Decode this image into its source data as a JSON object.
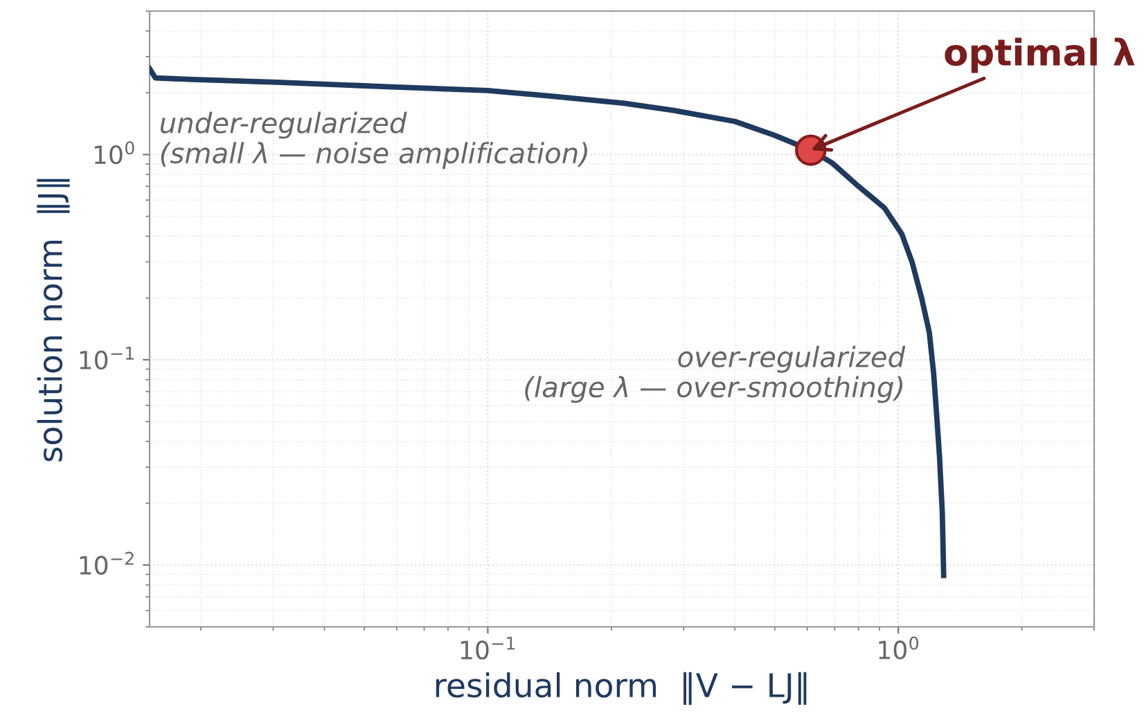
{
  "chart_data": {
    "type": "line",
    "xlabel": "residual norm  ‖V − LJ‖",
    "ylabel": "solution norm  ‖J‖",
    "log": "xy",
    "grid": true,
    "xlim": [
      0.015,
      3
    ],
    "ylim": [
      0.005,
      5
    ],
    "xticks": [
      {
        "value": 0.1,
        "label": "10$^{−1}$"
      },
      {
        "value": 1,
        "label": "10$^{0}$"
      }
    ],
    "yticks": [
      {
        "value": 0.01,
        "label": "10$^{−2}$"
      },
      {
        "value": 0.1,
        "label": "10$^{−1}$"
      },
      {
        "value": 1,
        "label": "10$^{0}$"
      }
    ],
    "series": [
      {
        "color": "#1f3a5f",
        "marker": "none",
        "line_style": "solid",
        "x": [
          0.015,
          0.0155,
          0.0192,
          0.0306,
          0.057,
          0.1,
          0.145,
          0.214,
          0.284,
          0.4,
          0.5,
          0.612,
          0.69,
          0.8,
          0.925,
          1.02,
          1.08,
          1.14,
          1.19,
          1.22,
          1.24,
          1.26,
          1.28,
          1.29
        ],
        "values": [
          2.62,
          2.36,
          2.32,
          2.25,
          2.14,
          2.05,
          1.92,
          1.78,
          1.64,
          1.45,
          1.24,
          1.05,
          0.91,
          0.7,
          0.55,
          0.41,
          0.3,
          0.2,
          0.136,
          0.085,
          0.054,
          0.034,
          0.018,
          0.0089
        ]
      },
      {
        "type": "scatter",
        "color": "#e04848",
        "marker": "circle",
        "x": [
          0.612
        ],
        "values": [
          1.05
        ]
      }
    ],
    "annotations": [
      {
        "text": "optimal λ",
        "x": 0.612,
        "y": 1.05
      },
      "under-regularized\n(small λ — noise amplification)",
      "over-regularized\n(large λ — over-smoothing)"
    ]
  }
}
